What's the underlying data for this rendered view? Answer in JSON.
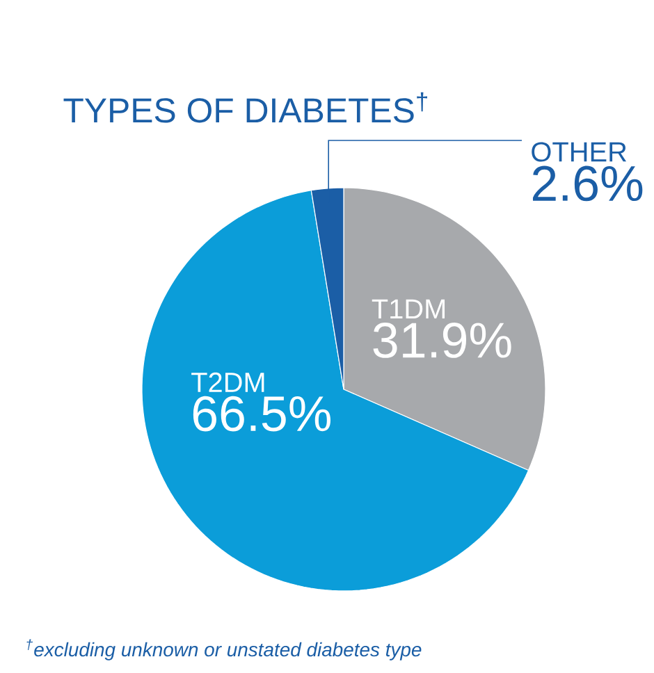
{
  "chart_data": {
    "type": "pie",
    "title": "TYPES OF DIABETES$^{†}$",
    "categories": [
      "T1DM",
      "T2DM",
      "OTHER"
    ],
    "values": [
      31.9,
      66.5,
      2.6
    ],
    "value_labels": [
      "31.9%",
      "66.5%",
      "2.6%"
    ],
    "colors": [
      "#a7a9ac",
      "#0b9dd9",
      "#1b5ea6"
    ],
    "annotations": [
      "$^{†}$excluding unknown or unstated diabetes type"
    ]
  }
}
